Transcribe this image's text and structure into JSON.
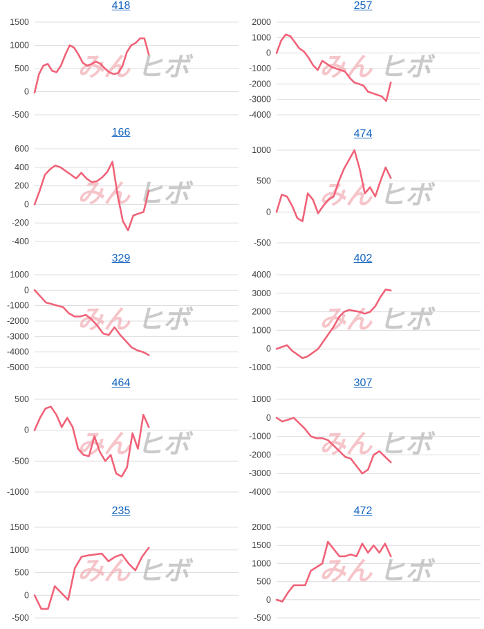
{
  "watermark": {
    "part1": "みん",
    "part2": "ヒボ"
  },
  "colors": {
    "line": "#f06278",
    "title_link": "#1565c0",
    "grid": "#dcdcdc"
  },
  "chart_data": [
    {
      "type": "line",
      "title": "418",
      "yticks": [
        1500,
        1000,
        500,
        0,
        -500
      ],
      "ylim": [
        -500,
        1500
      ],
      "values": [
        -20,
        380,
        560,
        600,
        450,
        420,
        560,
        800,
        1000,
        950,
        800,
        620,
        560,
        600,
        650,
        600,
        500,
        420,
        380,
        400,
        550,
        850,
        1000,
        1050,
        1150,
        1150,
        800
      ]
    },
    {
      "type": "line",
      "title": "257",
      "yticks": [
        2000,
        1000,
        0,
        -1000,
        -2000,
        -3000,
        -4000
      ],
      "ylim": [
        -4000,
        2000
      ],
      "values": [
        0,
        800,
        1200,
        1100,
        700,
        300,
        100,
        -300,
        -800,
        -1100,
        -500,
        -700,
        -900,
        -1000,
        -1100,
        -1200,
        -1600,
        -1900,
        -2000,
        -2100,
        -2500,
        -2600,
        -2700,
        -2800,
        -3100,
        -1900
      ]
    },
    {
      "type": "line",
      "title": "166",
      "yticks": [
        600,
        400,
        200,
        0,
        -200,
        -400
      ],
      "ylim": [
        -400,
        600
      ],
      "values": [
        0,
        150,
        320,
        380,
        420,
        400,
        360,
        320,
        280,
        340,
        280,
        240,
        250,
        290,
        350,
        460,
        100,
        -180,
        -280,
        -120,
        -100,
        -80,
        150
      ]
    },
    {
      "type": "line",
      "title": "474",
      "yticks": [
        1000,
        500,
        0,
        -500
      ],
      "ylim": [
        -500,
        1000
      ],
      "values": [
        0,
        280,
        250,
        100,
        -100,
        -150,
        300,
        200,
        -20,
        100,
        200,
        250,
        500,
        700,
        850,
        1000,
        700,
        300,
        400,
        250,
        500,
        720,
        550
      ]
    },
    {
      "type": "line",
      "title": "329",
      "yticks": [
        1000,
        0,
        -1000,
        -2000,
        -3000,
        -4000,
        -5000
      ],
      "ylim": [
        -5000,
        1000
      ],
      "values": [
        0,
        -400,
        -800,
        -900,
        -1000,
        -1100,
        -1500,
        -1700,
        -1700,
        -1600,
        -1900,
        -2300,
        -2800,
        -2900,
        -2400,
        -2900,
        -3300,
        -3700,
        -3900,
        -4000,
        -4200
      ]
    },
    {
      "type": "line",
      "title": "402",
      "yticks": [
        4000,
        3000,
        2000,
        1000,
        0,
        -1000
      ],
      "ylim": [
        -1000,
        4000
      ],
      "values": [
        0,
        100,
        200,
        -100,
        -300,
        -500,
        -400,
        -200,
        0,
        400,
        800,
        1200,
        1700,
        2000,
        2100,
        2050,
        2000,
        1900,
        2000,
        2300,
        2800,
        3200,
        3150
      ]
    },
    {
      "type": "line",
      "title": "464",
      "yticks": [
        500,
        0,
        -500,
        -1000
      ],
      "ylim": [
        -1000,
        500
      ],
      "values": [
        0,
        200,
        350,
        380,
        250,
        50,
        200,
        50,
        -300,
        -400,
        -420,
        -100,
        -350,
        -500,
        -400,
        -700,
        -750,
        -600,
        -50,
        -300,
        250,
        50
      ]
    },
    {
      "type": "line",
      "title": "307",
      "yticks": [
        1000,
        0,
        -1000,
        -2000,
        -3000,
        -4000
      ],
      "ylim": [
        -4000,
        1000
      ],
      "values": [
        0,
        -200,
        -100,
        0,
        -300,
        -600,
        -1000,
        -1100,
        -1100,
        -1200,
        -1500,
        -1800,
        -2100,
        -2200,
        -2600,
        -3000,
        -2800,
        -2000,
        -1800,
        -2100,
        -2400
      ]
    },
    {
      "type": "line",
      "title": "235",
      "yticks": [
        1500,
        1000,
        500,
        0,
        -500
      ],
      "ylim": [
        -500,
        1500
      ],
      "values": [
        0,
        -300,
        -300,
        200,
        50,
        -100,
        600,
        850,
        880,
        900,
        920,
        750,
        850,
        900,
        700,
        550,
        850,
        1050
      ]
    },
    {
      "type": "line",
      "title": "472",
      "yticks": [
        2000,
        1500,
        1000,
        500,
        0,
        -500
      ],
      "ylim": [
        -500,
        2000
      ],
      "values": [
        0,
        -50,
        200,
        400,
        400,
        400,
        800,
        900,
        1000,
        1600,
        1400,
        1200,
        1200,
        1250,
        1200,
        1550,
        1300,
        1500,
        1300,
        1550,
        1200
      ]
    }
  ]
}
